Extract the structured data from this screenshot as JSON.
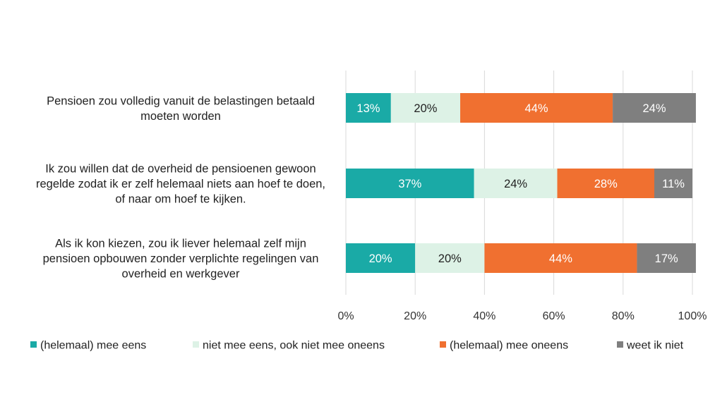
{
  "chart_data": {
    "type": "bar",
    "orientation": "horizontal",
    "stacked": true,
    "percent_stacked": true,
    "categories": [
      [
        "Pensioen zou volledig vanuit de belastingen betaald",
        "moeten worden"
      ],
      [
        "Ik zou willen dat de overheid de pensioenen gewoon",
        "regelde zodat ik er zelf helemaal niets aan hoef te doen,",
        "of naar om hoef te kijken."
      ],
      [
        "Als ik kon kiezen, zou ik liever helemaal zelf mijn",
        "pensioen opbouwen zonder verplichte regelingen van",
        "overheid en werkgever"
      ]
    ],
    "series": [
      {
        "name": "(helemaal) mee eens",
        "color": "#1AAAA6",
        "label_color": "#ffffff",
        "values": [
          13,
          37,
          20
        ],
        "labels": [
          "13%",
          "37%",
          "20%"
        ]
      },
      {
        "name": "niet mee eens, ook niet mee oneens",
        "color": "#DDF2E6",
        "label_color": "#222222",
        "values": [
          20,
          24,
          20
        ],
        "labels": [
          "20%",
          "24%",
          "20%"
        ]
      },
      {
        "name": "(helemaal) mee oneens",
        "color": "#F07030",
        "label_color": "#ffffff",
        "values": [
          44,
          28,
          44
        ],
        "labels": [
          "44%",
          "28%",
          "44%"
        ]
      },
      {
        "name": "weet ik niet",
        "color": "#7F7F7F",
        "label_color": "#ffffff",
        "values": [
          24,
          11,
          17
        ],
        "labels": [
          "24%",
          "11%",
          "17%"
        ]
      }
    ],
    "x_ticks": [
      "0%",
      "20%",
      "40%",
      "60%",
      "80%",
      "100%"
    ],
    "xlim": [
      0,
      100
    ],
    "grid": true,
    "legend_position": "bottom",
    "title": "",
    "xlabel": "",
    "ylabel": ""
  }
}
